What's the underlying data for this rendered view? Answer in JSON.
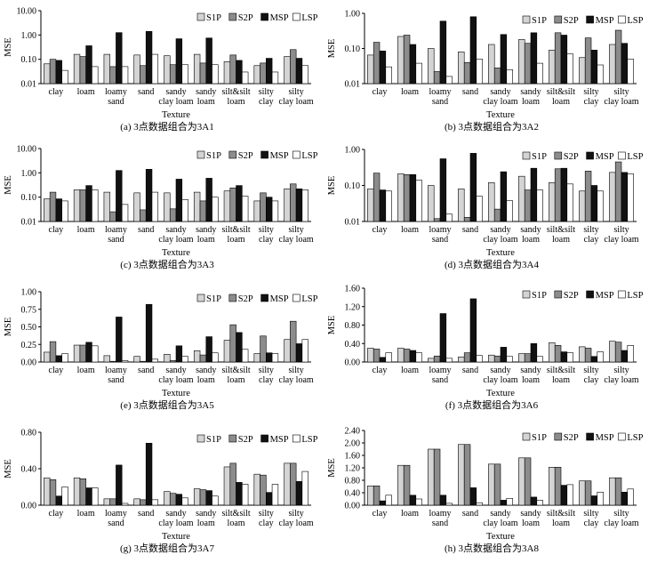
{
  "colors": {
    "S1P": "#d4d4d4",
    "S2P": "#8c8c8c",
    "MSP": "#111111",
    "LSP": "#ffffff",
    "axis": "#000000"
  },
  "chart_data": [
    {
      "type": "bar",
      "scale": "log",
      "ylim": [
        0.01,
        10
      ],
      "yticks": [
        "0.01",
        "0.10",
        "1.00",
        "10.00"
      ],
      "ytick_values": [
        0.01,
        0.1,
        1,
        10
      ],
      "ylabel": "MSE",
      "xlabel": "Texture",
      "caption": "(a) 3点数据组合为3A1",
      "legend_position": "top-right",
      "grid": false,
      "categories": [
        "clay",
        "loam",
        "loamy sand",
        "sand",
        "sandy clay loam",
        "sandy loam",
        "silt&silt loam",
        "silty clay",
        "silty clay loam"
      ],
      "series": [
        {
          "name": "S1P",
          "values": [
            0.065,
            0.16,
            0.16,
            0.15,
            0.14,
            0.16,
            0.08,
            0.055,
            0.13
          ]
        },
        {
          "name": "S2P",
          "values": [
            0.1,
            0.13,
            0.05,
            0.055,
            0.06,
            0.07,
            0.15,
            0.07,
            0.25
          ]
        },
        {
          "name": "MSP",
          "values": [
            0.09,
            0.36,
            1.25,
            1.4,
            0.7,
            0.75,
            0.09,
            0.11,
            0.11
          ]
        },
        {
          "name": "LSP",
          "values": [
            0.035,
            0.05,
            0.05,
            0.16,
            0.06,
            0.06,
            0.03,
            0.03,
            0.055
          ]
        }
      ]
    },
    {
      "type": "bar",
      "scale": "log",
      "ylim": [
        0.01,
        1
      ],
      "yticks": [
        "0.01",
        "0.10",
        "1.00"
      ],
      "ytick_values": [
        0.01,
        0.1,
        1
      ],
      "ylabel": "MSE",
      "xlabel": "Texture",
      "caption": "(b) 3点数据组合为3A2",
      "legend_position": "top-right",
      "grid": false,
      "categories": [
        "clay",
        "loam",
        "loamy sand",
        "sand",
        "sandy clay loam",
        "sandy loam",
        "silt&silt loam",
        "silty clay",
        "silty clay loam"
      ],
      "series": [
        {
          "name": "S1P",
          "values": [
            0.065,
            0.22,
            0.1,
            0.08,
            0.13,
            0.18,
            0.09,
            0.055,
            0.13
          ]
        },
        {
          "name": "S2P",
          "values": [
            0.15,
            0.24,
            0.022,
            0.04,
            0.028,
            0.14,
            0.28,
            0.2,
            0.33
          ]
        },
        {
          "name": "MSP",
          "values": [
            0.085,
            0.13,
            0.6,
            0.8,
            0.25,
            0.28,
            0.24,
            0.09,
            0.14
          ]
        },
        {
          "name": "LSP",
          "values": [
            0.03,
            0.038,
            0.016,
            0.05,
            0.025,
            0.038,
            0.07,
            0.034,
            0.05
          ]
        }
      ]
    },
    {
      "type": "bar",
      "scale": "log",
      "ylim": [
        0.01,
        10
      ],
      "yticks": [
        "0.01",
        "0.10",
        "1.00",
        "10.00"
      ],
      "ytick_values": [
        0.01,
        0.1,
        1,
        10
      ],
      "ylabel": "MSE",
      "xlabel": "Texture",
      "caption": "(c) 3点数据组合为3A3",
      "legend_position": "top-right",
      "grid": false,
      "categories": [
        "clay",
        "loam",
        "loamy sand",
        "sand",
        "sandy clay loam",
        "sandy loam",
        "silt&silt loam",
        "silty clay",
        "silty clay loam"
      ],
      "series": [
        {
          "name": "S1P",
          "values": [
            0.085,
            0.2,
            0.16,
            0.15,
            0.15,
            0.16,
            0.18,
            0.07,
            0.22
          ]
        },
        {
          "name": "S2P",
          "values": [
            0.16,
            0.2,
            0.025,
            0.03,
            0.033,
            0.07,
            0.24,
            0.15,
            0.35
          ]
        },
        {
          "name": "MSP",
          "values": [
            0.085,
            0.3,
            1.25,
            1.4,
            0.55,
            0.6,
            0.3,
            0.1,
            0.22
          ]
        },
        {
          "name": "LSP",
          "values": [
            0.07,
            0.2,
            0.05,
            0.16,
            0.08,
            0.1,
            0.11,
            0.07,
            0.2
          ]
        }
      ]
    },
    {
      "type": "bar",
      "scale": "log",
      "ylim": [
        0.01,
        1
      ],
      "yticks": [
        "0.01",
        "0.10",
        "1.00"
      ],
      "ytick_values": [
        0.01,
        0.1,
        1
      ],
      "ylabel": "MSE",
      "xlabel": "Texture",
      "caption": "(d) 3点数据组合为3A4",
      "legend_position": "top-right",
      "grid": false,
      "categories": [
        "clay",
        "loam",
        "loamy sand",
        "sand",
        "sandy clay loam",
        "sandy loam",
        "silt&silt loam",
        "silty clay",
        "silty clay loam"
      ],
      "series": [
        {
          "name": "S1P",
          "values": [
            0.08,
            0.21,
            0.1,
            0.08,
            0.12,
            0.18,
            0.12,
            0.07,
            0.23
          ]
        },
        {
          "name": "S2P",
          "values": [
            0.22,
            0.2,
            0.012,
            0.013,
            0.022,
            0.075,
            0.29,
            0.25,
            0.45
          ]
        },
        {
          "name": "MSP",
          "values": [
            0.075,
            0.2,
            0.55,
            0.78,
            0.24,
            0.3,
            0.3,
            0.1,
            0.23
          ]
        },
        {
          "name": "LSP",
          "values": [
            0.07,
            0.14,
            0.016,
            0.05,
            0.038,
            0.075,
            0.11,
            0.07,
            0.21
          ]
        }
      ]
    },
    {
      "type": "bar",
      "scale": "linear",
      "ylim": [
        0,
        1.0
      ],
      "yticks": [
        "0.00",
        "0.25",
        "0.50",
        "0.75",
        "1.00"
      ],
      "ytick_values": [
        0,
        0.25,
        0.5,
        0.75,
        1.0
      ],
      "ylabel": "MSE",
      "xlabel": "Texture",
      "caption": "(e) 3点数据组合为3A5",
      "legend_position": "top-right",
      "grid": false,
      "categories": [
        "clay",
        "loam",
        "loamy sand",
        "sand",
        "sandy clay loam",
        "sandy loam",
        "silt&silt loam",
        "silty clay",
        "silty clay loam"
      ],
      "series": [
        {
          "name": "S1P",
          "values": [
            0.14,
            0.24,
            0.09,
            0.08,
            0.11,
            0.16,
            0.31,
            0.12,
            0.32
          ]
        },
        {
          "name": "S2P",
          "values": [
            0.29,
            0.24,
            0.01,
            0.01,
            0.02,
            0.1,
            0.53,
            0.37,
            0.58
          ]
        },
        {
          "name": "MSP",
          "values": [
            0.09,
            0.28,
            0.64,
            0.82,
            0.23,
            0.36,
            0.42,
            0.13,
            0.26
          ]
        },
        {
          "name": "LSP",
          "values": [
            0.12,
            0.23,
            0.02,
            0.04,
            0.08,
            0.13,
            0.18,
            0.12,
            0.32
          ]
        }
      ]
    },
    {
      "type": "bar",
      "scale": "linear",
      "ylim": [
        0,
        1.6
      ],
      "yticks": [
        "0.00",
        "0.40",
        "0.80",
        "1.20",
        "1.60"
      ],
      "ytick_values": [
        0,
        0.4,
        0.8,
        1.2,
        1.6
      ],
      "ylabel": "MSE",
      "xlabel": "Texture",
      "caption": "(f) 3点数据组合为3A6",
      "legend_position": "top-right",
      "grid": false,
      "categories": [
        "clay",
        "loam",
        "loamy sand",
        "sand",
        "sandy clay loam",
        "sandy loam",
        "silt&silt loam",
        "silty clay",
        "silty clay loam"
      ],
      "series": [
        {
          "name": "S1P",
          "values": [
            0.3,
            0.3,
            0.08,
            0.11,
            0.15,
            0.18,
            0.42,
            0.33,
            0.45
          ]
        },
        {
          "name": "S2P",
          "values": [
            0.28,
            0.28,
            0.13,
            0.2,
            0.13,
            0.18,
            0.36,
            0.3,
            0.43
          ]
        },
        {
          "name": "MSP",
          "values": [
            0.1,
            0.25,
            1.05,
            1.37,
            0.32,
            0.4,
            0.22,
            0.12,
            0.25
          ]
        },
        {
          "name": "LSP",
          "values": [
            0.2,
            0.2,
            0.08,
            0.14,
            0.12,
            0.12,
            0.2,
            0.22,
            0.36
          ]
        }
      ]
    },
    {
      "type": "bar",
      "scale": "linear",
      "ylim": [
        0,
        0.8
      ],
      "yticks": [
        "0.00",
        "0.40",
        "0.80"
      ],
      "ytick_values": [
        0,
        0.4,
        0.8
      ],
      "ylabel": "MSE",
      "xlabel": "Texture",
      "caption": "(g) 3点数据组合为3A7",
      "legend_position": "top-right",
      "grid": false,
      "categories": [
        "clay",
        "loam",
        "loamy sand",
        "sand",
        "sandy clay loam",
        "sandy loam",
        "silt&silt loam",
        "silty clay",
        "silty clay loam"
      ],
      "series": [
        {
          "name": "S1P",
          "values": [
            0.3,
            0.3,
            0.07,
            0.07,
            0.15,
            0.18,
            0.42,
            0.34,
            0.46
          ]
        },
        {
          "name": "S2P",
          "values": [
            0.28,
            0.29,
            0.07,
            0.06,
            0.13,
            0.17,
            0.46,
            0.33,
            0.46
          ]
        },
        {
          "name": "MSP",
          "values": [
            0.1,
            0.19,
            0.44,
            0.68,
            0.12,
            0.16,
            0.25,
            0.14,
            0.26
          ]
        },
        {
          "name": "LSP",
          "values": [
            0.2,
            0.19,
            0.02,
            0.06,
            0.08,
            0.1,
            0.23,
            0.23,
            0.37
          ]
        }
      ]
    },
    {
      "type": "bar",
      "scale": "linear",
      "ylim": [
        0,
        2.4
      ],
      "yticks": [
        "0.00",
        "0.40",
        "0.80",
        "1.20",
        "1.60",
        "2.00",
        "2.40"
      ],
      "ytick_values": [
        0,
        0.4,
        0.8,
        1.2,
        1.6,
        2.0,
        2.4
      ],
      "ylabel": "MSE",
      "xlabel": "Texture",
      "caption": "(h) 3点数据组合为3A8",
      "legend_position": "top-right",
      "grid": false,
      "categories": [
        "clay",
        "loam",
        "loamy sand",
        "sand",
        "sandy clay loam",
        "sandy loam",
        "silt&silt loam",
        "silty clay",
        "silty clay loam"
      ],
      "series": [
        {
          "name": "S1P",
          "values": [
            0.62,
            1.28,
            1.8,
            1.95,
            1.32,
            1.52,
            1.22,
            0.78,
            0.88
          ]
        },
        {
          "name": "S2P",
          "values": [
            0.62,
            1.28,
            1.8,
            1.95,
            1.32,
            1.52,
            1.22,
            0.78,
            0.88
          ]
        },
        {
          "name": "MSP",
          "values": [
            0.14,
            0.32,
            0.32,
            0.56,
            0.16,
            0.26,
            0.64,
            0.3,
            0.42
          ]
        },
        {
          "name": "LSP",
          "values": [
            0.32,
            0.2,
            0.06,
            0.08,
            0.22,
            0.16,
            0.66,
            0.42,
            0.52
          ]
        }
      ]
    }
  ]
}
